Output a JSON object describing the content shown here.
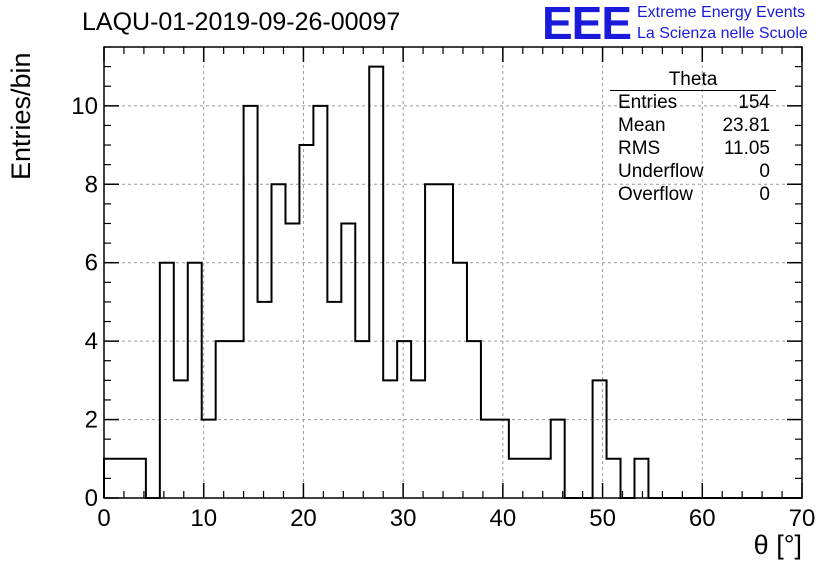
{
  "run_title": "LAQU-01-2019-09-26-00097",
  "logo": {
    "mark": "EEE",
    "line1": "Extreme Energy Events",
    "line2": "La Scienza nelle Scuole",
    "color": "#1a1adb"
  },
  "stats": {
    "title": "Theta",
    "rows": [
      {
        "label": "Entries",
        "value": "154"
      },
      {
        "label": "Mean",
        "value": "23.81"
      },
      {
        "label": "RMS",
        "value": "11.05"
      },
      {
        "label": "Underflow",
        "value": "0"
      },
      {
        "label": "Overflow",
        "value": "0"
      }
    ]
  },
  "chart_data": {
    "type": "histogram",
    "title": "LAQU-01-2019-09-26-00097",
    "xlabel": "θ [°]",
    "ylabel": "Entries/bin",
    "xlim": [
      0,
      70
    ],
    "ylim": [
      0,
      11.5
    ],
    "grid": true,
    "bin_width": 1.4,
    "bin_start": 0,
    "values": [
      1,
      1,
      1,
      0,
      6,
      3,
      6,
      2,
      4,
      4,
      10,
      5,
      8,
      7,
      9,
      10,
      5,
      7,
      4,
      11,
      3,
      4,
      3,
      8,
      8,
      6,
      4,
      2,
      2,
      1,
      1,
      1,
      2,
      0,
      0,
      3,
      1,
      0,
      1,
      0,
      0,
      0,
      0,
      0,
      0,
      0,
      0,
      0,
      0,
      0
    ],
    "xticks": [
      0,
      10,
      20,
      30,
      40,
      50,
      60,
      70
    ],
    "yticks": [
      0,
      2,
      4,
      6,
      8,
      10
    ]
  }
}
